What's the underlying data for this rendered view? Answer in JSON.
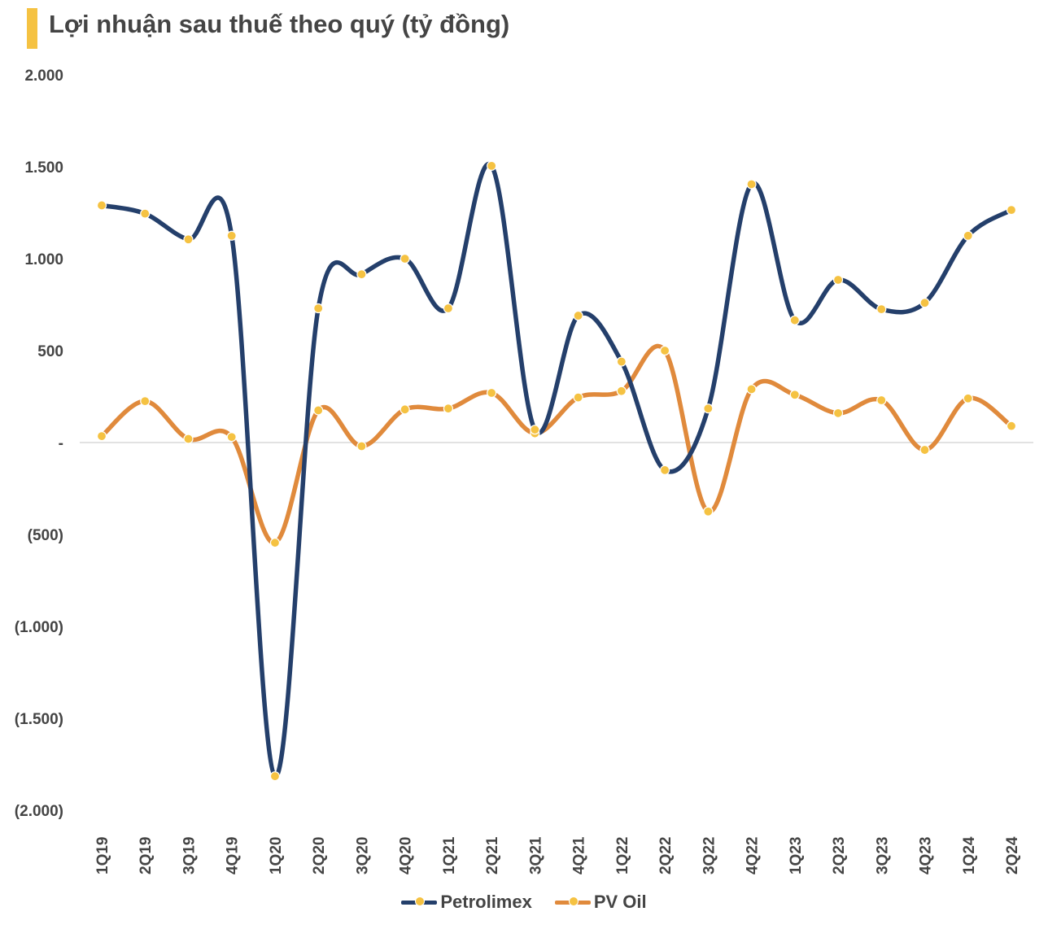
{
  "title": "Lợi nhuận sau thuế theo quý (tỷ đồng)",
  "colors": {
    "accent": "#f5c242",
    "petrolimex": "#243f6b",
    "pvoil": "#e08a3c",
    "marker": "#f5c242"
  },
  "chart_data": {
    "type": "line",
    "title": "Lợi nhuận sau thuế theo quý (tỷ đồng)",
    "xlabel": "",
    "ylabel": "",
    "categories": [
      "1Q19",
      "2Q19",
      "3Q19",
      "4Q19",
      "1Q20",
      "2Q20",
      "3Q20",
      "4Q20",
      "1Q21",
      "2Q21",
      "3Q21",
      "4Q21",
      "1Q22",
      "2Q22",
      "3Q22",
      "4Q22",
      "1Q23",
      "2Q23",
      "3Q23",
      "4Q23",
      "1Q24",
      "2Q24"
    ],
    "ylim": [
      -2000,
      2000
    ],
    "yticks": [
      2000,
      1500,
      1000,
      500,
      0,
      -500,
      -1000,
      -1500,
      -2000
    ],
    "ytick_labels": [
      "2.000",
      "1.500",
      "1.000",
      "500",
      "-",
      "(500)",
      "(1.000)",
      "(1.500)",
      "(2.000)"
    ],
    "series": [
      {
        "name": "Petrolimex",
        "color": "#243f6b",
        "values": [
          1290,
          1245,
          1105,
          1125,
          -1815,
          730,
          915,
          1000,
          730,
          1505,
          70,
          690,
          440,
          -150,
          185,
          1405,
          665,
          885,
          725,
          760,
          1125,
          1265
        ]
      },
      {
        "name": "PV Oil",
        "color": "#e08a3c",
        "values": [
          35,
          225,
          20,
          30,
          -545,
          175,
          -20,
          180,
          185,
          270,
          50,
          245,
          280,
          500,
          -375,
          290,
          260,
          160,
          230,
          -40,
          240,
          90
        ]
      }
    ],
    "grid": false,
    "legend": "bottom-center"
  }
}
